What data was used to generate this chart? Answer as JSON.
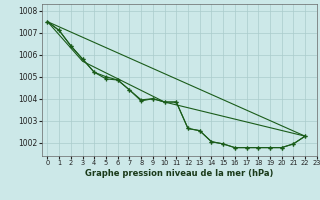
{
  "title": "Graphe pression niveau de la mer (hPa)",
  "bg_color": "#cce8e8",
  "grid_color": "#aacccc",
  "line_color": "#1a5c1a",
  "xlim": [
    -0.5,
    23
  ],
  "ylim": [
    1001.4,
    1008.3
  ],
  "yticks": [
    1002,
    1003,
    1004,
    1005,
    1006,
    1007,
    1008
  ],
  "xtick_labels": [
    "0",
    "1",
    "2",
    "3",
    "4",
    "5",
    "6",
    "7",
    "8",
    "9",
    "10",
    "11",
    "12",
    "13",
    "14",
    "15",
    "16",
    "17",
    "18",
    "19",
    "20",
    "21",
    "22",
    "23"
  ],
  "series_with_markers": [
    {
      "x": [
        0,
        1,
        2,
        3,
        4,
        5,
        6,
        7,
        8,
        9,
        10,
        11,
        12,
        13,
        14,
        15,
        16,
        17,
        18,
        19,
        20,
        21,
        22
      ],
      "y": [
        1007.5,
        1007.1,
        1006.4,
        1005.8,
        1005.2,
        1004.9,
        1004.85,
        1004.4,
        1003.9,
        1004.0,
        1003.85,
        1003.85,
        1002.65,
        1002.55,
        1002.05,
        1001.95,
        1001.78,
        1001.78,
        1001.78,
        1001.78,
        1001.78,
        1001.95,
        1002.3
      ]
    },
    {
      "x": [
        0,
        1,
        2,
        3,
        4,
        5,
        6,
        7,
        8,
        9,
        10,
        11,
        12,
        13,
        14,
        15,
        16,
        17,
        18,
        19,
        20,
        21,
        22
      ],
      "y": [
        1007.5,
        1007.1,
        1006.4,
        1005.8,
        1005.2,
        1005.0,
        1004.85,
        1004.4,
        1003.95,
        1004.0,
        1003.85,
        1003.85,
        1002.65,
        1002.55,
        1002.05,
        1001.95,
        1001.78,
        1001.78,
        1001.78,
        1001.78,
        1001.78,
        1001.95,
        1002.3
      ]
    }
  ],
  "series_smooth": [
    {
      "x": [
        0,
        22
      ],
      "y": [
        1007.5,
        1002.3
      ]
    },
    {
      "x": [
        0,
        3,
        10,
        22
      ],
      "y": [
        1007.5,
        1005.7,
        1003.85,
        1002.3
      ]
    }
  ]
}
